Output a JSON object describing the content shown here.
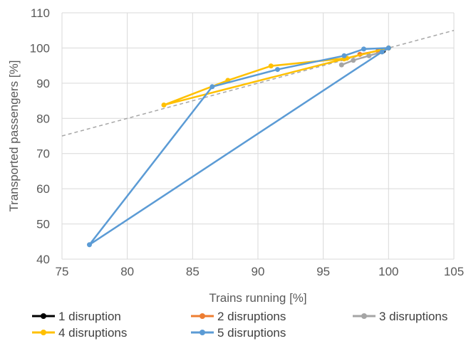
{
  "chart_data": {
    "type": "scatter",
    "xlabel": "Trains running [%]",
    "ylabel": "Transported passengers [%]",
    "xlim": [
      75,
      105
    ],
    "ylim": [
      40,
      110
    ],
    "xticks": [
      75,
      80,
      85,
      90,
      95,
      100,
      105
    ],
    "yticks": [
      40,
      50,
      60,
      70,
      80,
      90,
      100,
      110
    ],
    "grid": true,
    "legend_position": "bottom",
    "reference_line": {
      "style": "dashed",
      "color": "#a6a6a6",
      "points": [
        [
          75,
          75
        ],
        [
          105,
          105
        ]
      ]
    },
    "series": [
      {
        "name": "1 disruption",
        "color": "#000000",
        "points": [
          [
            99.6,
            99.2
          ],
          [
            100,
            100
          ]
        ]
      },
      {
        "name": "2 disruptions",
        "color": "#ed7d31",
        "points": [
          [
            97.8,
            98.2
          ],
          [
            99.2,
            99.2
          ],
          [
            100,
            100
          ]
        ]
      },
      {
        "name": "3 disruptions",
        "color": "#a5a5a5",
        "points": [
          [
            96.4,
            95.2
          ],
          [
            97.3,
            96.5
          ],
          [
            98.5,
            97.8
          ],
          [
            99.5,
            98.9
          ],
          [
            100,
            100
          ]
        ]
      },
      {
        "name": "4 disruptions",
        "color": "#ffc000",
        "points": [
          [
            82.8,
            83.8
          ],
          [
            87.7,
            90.8
          ],
          [
            91.0,
            94.9
          ],
          [
            96.8,
            97.1
          ],
          [
            100,
            100
          ],
          [
            96.6,
            96.9
          ],
          [
            82.8,
            83.8
          ]
        ]
      },
      {
        "name": "5 disruptions",
        "color": "#5b9bd5",
        "points": [
          [
            77.1,
            44.1
          ],
          [
            86.5,
            89.0
          ],
          [
            91.5,
            93.9
          ],
          [
            96.6,
            97.8
          ],
          [
            98.1,
            99.7
          ],
          [
            100,
            100
          ],
          [
            99.5,
            98.9
          ],
          [
            77.1,
            44.1
          ]
        ]
      }
    ]
  }
}
